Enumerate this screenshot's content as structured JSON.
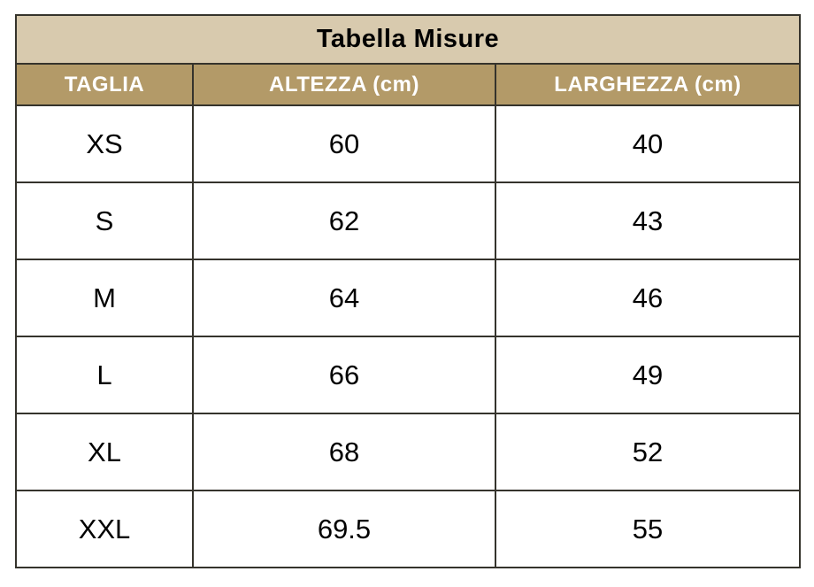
{
  "colors": {
    "title_bg": "#d8caae",
    "header_bg": "#b39a68",
    "header_text": "#ffffff",
    "body_bg": "#ffffff",
    "body_text": "#000000",
    "border": "#35332c"
  },
  "table": {
    "title": "Tabella Misure",
    "columns": [
      "TAGLIA",
      "ALTEZZA (cm)",
      "LARGHEZZA (cm)"
    ],
    "rows": [
      [
        "XS",
        "60",
        "40"
      ],
      [
        "S",
        "62",
        "43"
      ],
      [
        "M",
        "64",
        "46"
      ],
      [
        "L",
        "66",
        "49"
      ],
      [
        "XL",
        "68",
        "52"
      ],
      [
        "XXL",
        "69.5",
        "55"
      ]
    ]
  },
  "chart_data": {
    "type": "table",
    "title": "Tabella Misure",
    "columns": [
      "TAGLIA",
      "ALTEZZA (cm)",
      "LARGHEZZA (cm)"
    ],
    "rows": [
      {
        "taglia": "XS",
        "altezza_cm": 60,
        "larghezza_cm": 40
      },
      {
        "taglia": "S",
        "altezza_cm": 62,
        "larghezza_cm": 43
      },
      {
        "taglia": "M",
        "altezza_cm": 64,
        "larghezza_cm": 46
      },
      {
        "taglia": "L",
        "altezza_cm": 66,
        "larghezza_cm": 49
      },
      {
        "taglia": "XL",
        "altezza_cm": 68,
        "larghezza_cm": 52
      },
      {
        "taglia": "XXL",
        "altezza_cm": 69.5,
        "larghezza_cm": 55
      }
    ],
    "layout": {
      "title_position": "top-center",
      "grid": "on",
      "cell_alignment": "center"
    }
  }
}
